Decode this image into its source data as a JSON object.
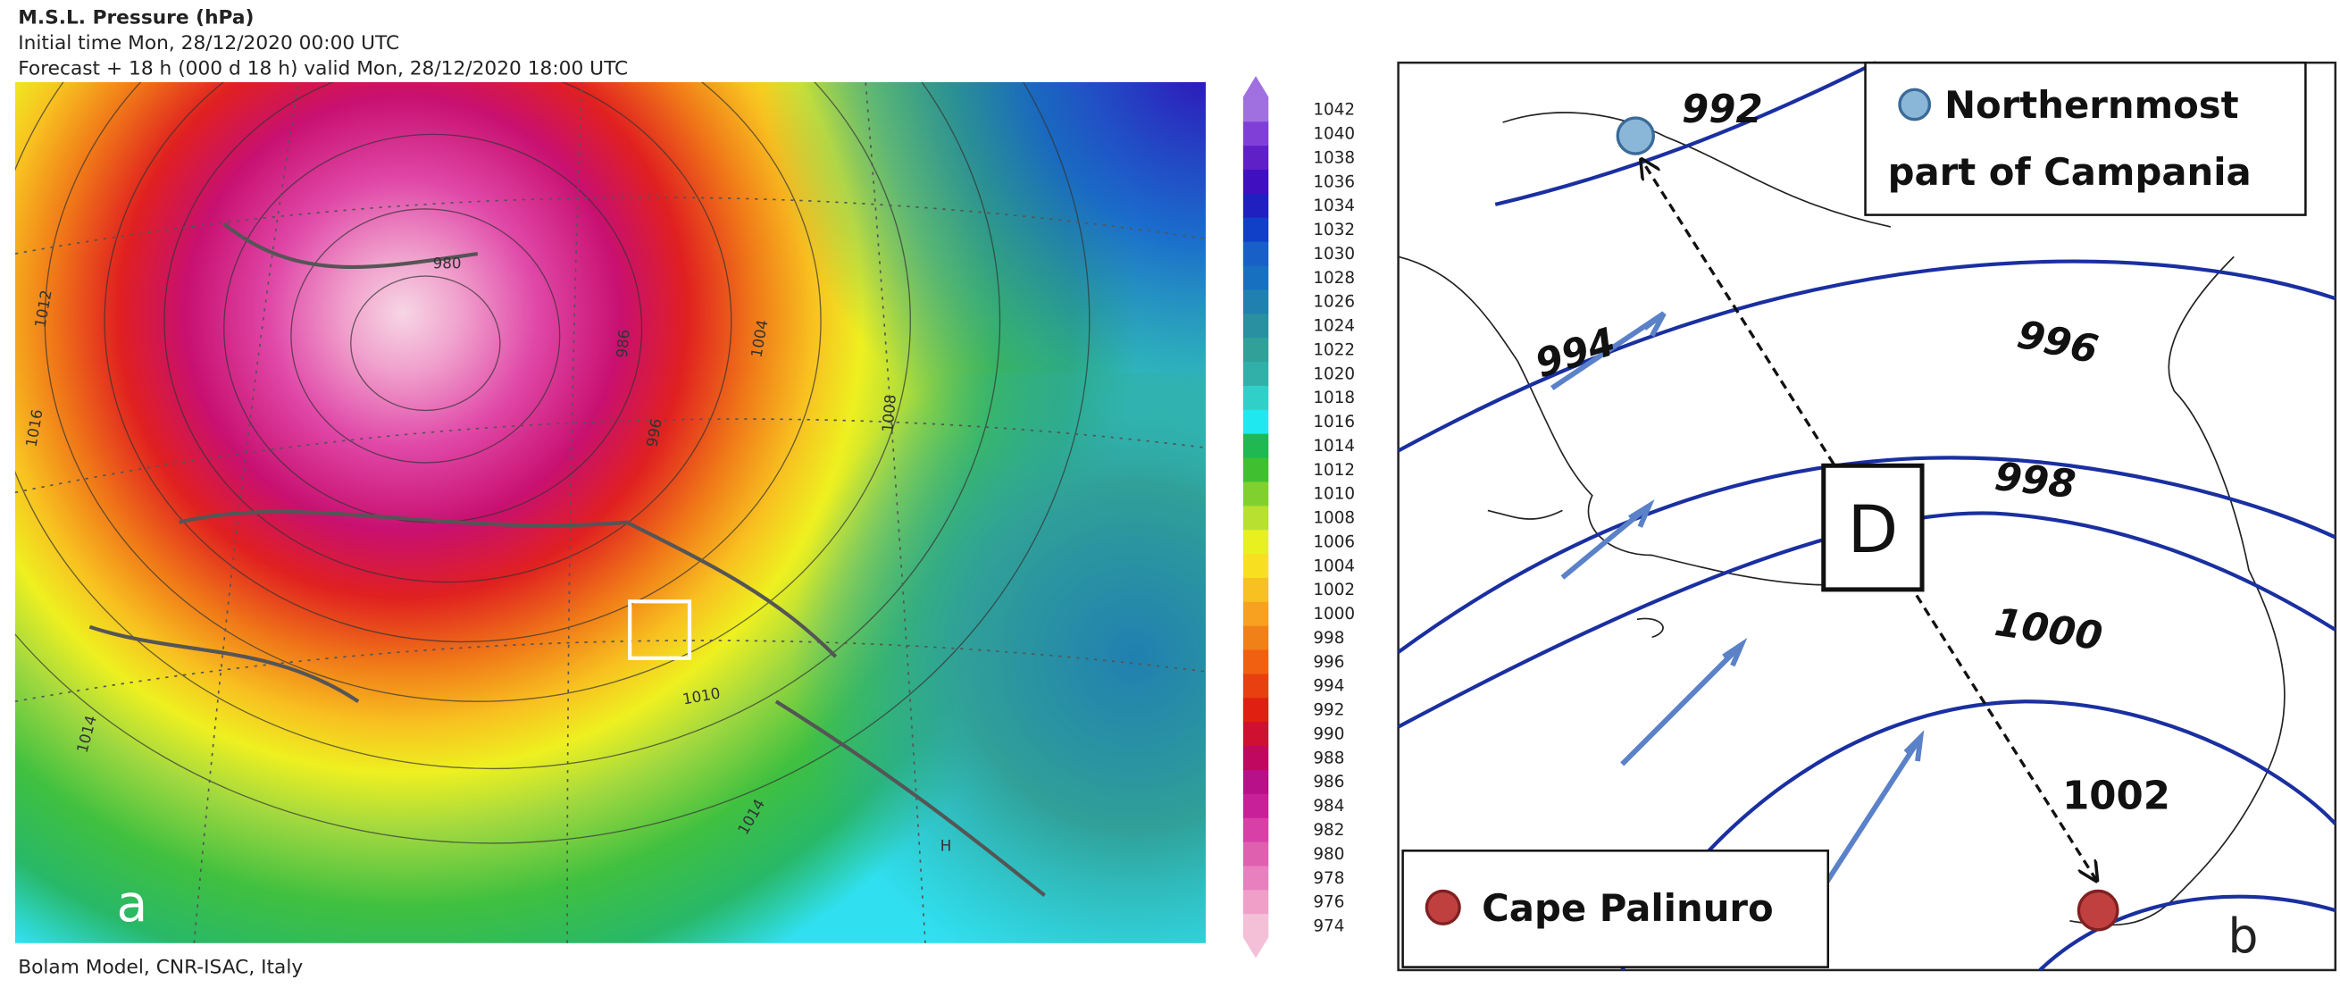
{
  "panel_a": {
    "title": "M.S.L. Pressure (hPa)",
    "initial_time": "Initial time  Mon, 28/12/2020  00:00 UTC",
    "forecast": "Forecast  +  18 h  (000 d 18 h)  valid Mon, 28/12/2020 18:00 UTC",
    "contour_labels": [
      "1016",
      "1014",
      "1012",
      "1010",
      "1014",
      "1008",
      "1004",
      "996",
      "986",
      "980",
      "H"
    ],
    "label": "a",
    "footer": "Bolam Model, CNR-ISAC, Italy",
    "colorbar": {
      "ticks": [
        974,
        976,
        978,
        980,
        982,
        984,
        986,
        988,
        990,
        992,
        994,
        996,
        998,
        1000,
        1002,
        1004,
        1006,
        1008,
        1010,
        1012,
        1014,
        1016,
        1018,
        1020,
        1022,
        1024,
        1026,
        1028,
        1030,
        1032,
        1034,
        1036,
        1038,
        1040,
        1042
      ],
      "colors": [
        "#f4c0d8",
        "#f0a0c8",
        "#e880c0",
        "#e060b0",
        "#d840a8",
        "#c82098",
        "#b81088",
        "#c00860",
        "#d01030",
        "#e02010",
        "#e84010",
        "#f06010",
        "#f08018",
        "#f8a020",
        "#f8c020",
        "#f8e020",
        "#e8f020",
        "#b8e030",
        "#80d030",
        "#40c030",
        "#20b850",
        "#20e8f0",
        "#30d0c8",
        "#30b0a8",
        "#30a098",
        "#2890a0",
        "#2080b0",
        "#1870c0",
        "#1860c8",
        "#1040c8",
        "#2020c0",
        "#4010c0",
        "#6020c8",
        "#8040d8",
        "#a070e0"
      ]
    }
  },
  "panel_b": {
    "isobars": [
      992,
      994,
      996,
      998,
      1000,
      1002
    ],
    "center_label": "D",
    "legend_north": [
      "Northernmost",
      "part of Campania"
    ],
    "legend_south": "Cape Palinuro",
    "label": "b"
  }
}
